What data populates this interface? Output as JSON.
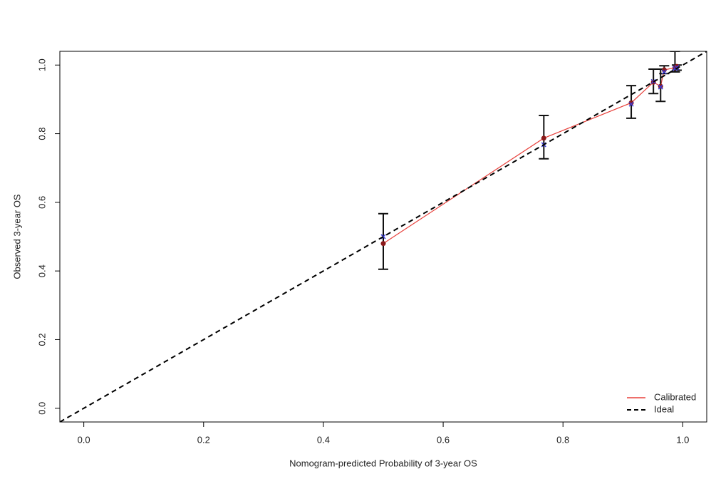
{
  "chart_data": {
    "type": "line",
    "xlabel": "Nomogram-predicted Probability of 3-year OS",
    "ylabel": "Observed 3-year OS",
    "xlim": [
      -0.04,
      1.04
    ],
    "ylim": [
      -0.04,
      1.04
    ],
    "xticks": [
      {
        "value": 0,
        "label": "0.0"
      },
      0.2,
      0.4,
      0.6,
      0.8,
      {
        "value": 1,
        "label": "1.0"
      }
    ],
    "yticks": [
      {
        "value": 0,
        "label": "0.0"
      },
      0.2,
      0.4,
      0.6,
      0.8,
      {
        "value": 1,
        "label": "1.0"
      }
    ],
    "legend": "bottom right",
    "series": [
      {
        "name": "Calibrated",
        "color": "#e8413c",
        "marker_color": "#8b1a1a",
        "x": [
          0.5,
          0.768,
          0.914,
          0.951,
          0.963,
          0.969,
          0.987,
          0.99
        ],
        "values": [
          0.48,
          0.787,
          0.89,
          0.95,
          0.938,
          0.986,
          0.992,
          0.996
        ],
        "lower": [
          0.405,
          0.727,
          0.845,
          0.917,
          0.894,
          0.975,
          0.98,
          0.985
        ],
        "upper": [
          0.567,
          0.853,
          0.94,
          0.988,
          0.988,
          0.998,
          1.04,
          1.0
        ],
        "corrected_color": "#3a3ad6",
        "corrected_values": [
          0.5,
          0.768,
          0.886,
          0.952,
          0.936,
          0.98,
          0.99,
          0.993
        ]
      },
      {
        "name": "Ideal",
        "color": "#000000",
        "dashed": true,
        "x": [
          -0.04,
          1.04
        ],
        "values": [
          -0.04,
          1.04
        ]
      }
    ]
  }
}
